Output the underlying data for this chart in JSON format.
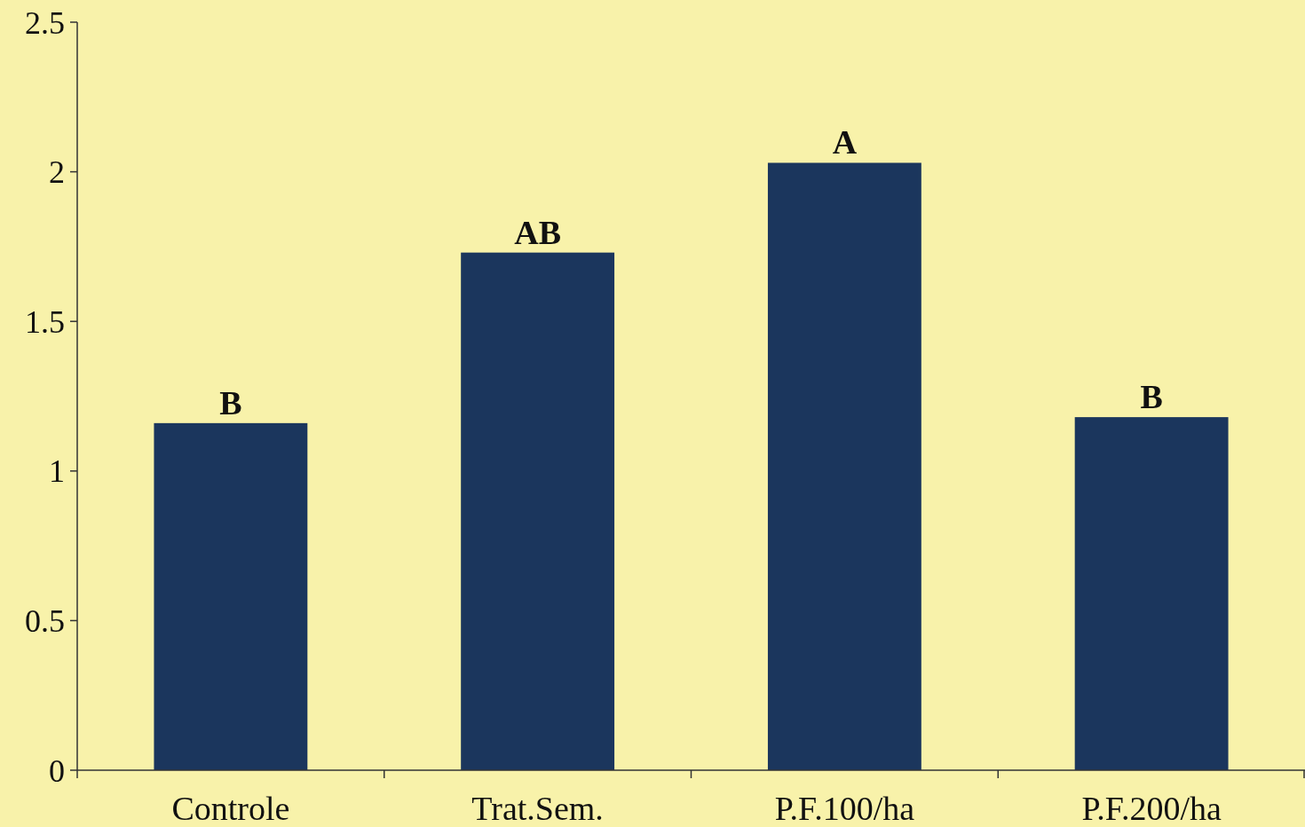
{
  "chart_data": {
    "type": "bar",
    "categories": [
      "Controle",
      "Trat.Sem.",
      "P.F.100/ha",
      "P.F.200/ha"
    ],
    "values": [
      1.16,
      1.73,
      2.03,
      1.18
    ],
    "color": "#1b365d",
    "ylim": [
      0,
      2.5
    ],
    "yticks": [
      0,
      0.5,
      1,
      1.5,
      2,
      2.5
    ],
    "grid": false,
    "annotations": [
      {
        "text": "B",
        "x": "Controle",
        "y": 1.16
      },
      {
        "text": "AB",
        "x": "Trat.Sem.",
        "y": 1.73
      },
      {
        "text": "A",
        "x": "P.F.100/ha",
        "y": 2.03
      },
      {
        "text": "B",
        "x": "P.F.200/ha",
        "y": 1.18
      }
    ]
  }
}
